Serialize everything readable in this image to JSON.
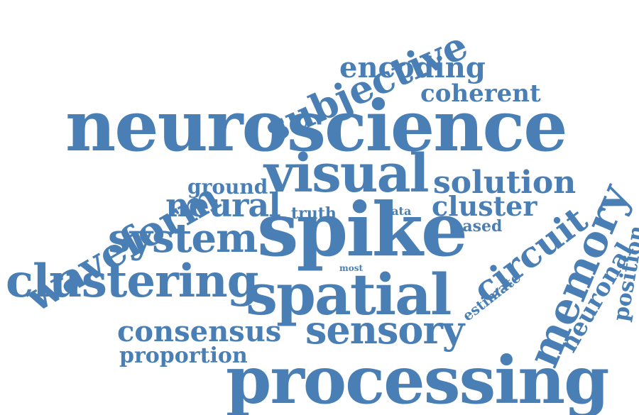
{
  "background": "#ffffff",
  "word_color": "#4a7fb5",
  "words": {
    "neuroscience": "neuroscience",
    "processing": "processing",
    "spike": "spike",
    "spatial": "spatial",
    "visual": "visual",
    "clustering": "clustering",
    "sensory": "sensory",
    "system": "system",
    "neural": "neural",
    "consensus": "consensus",
    "proportion": "proportion",
    "ground": "ground",
    "truth": "truth",
    "data": "data",
    "most": "most",
    "solution": "solution",
    "cluster": "cluster",
    "based": "based",
    "coherent": "coherent",
    "encoding": "encoding",
    "waveform": "waveform",
    "subjective": "subjective",
    "circuit": "circuit",
    "estimate": "estimate",
    "memory": "memory",
    "neuronal": "neuronal",
    "position": "position"
  }
}
